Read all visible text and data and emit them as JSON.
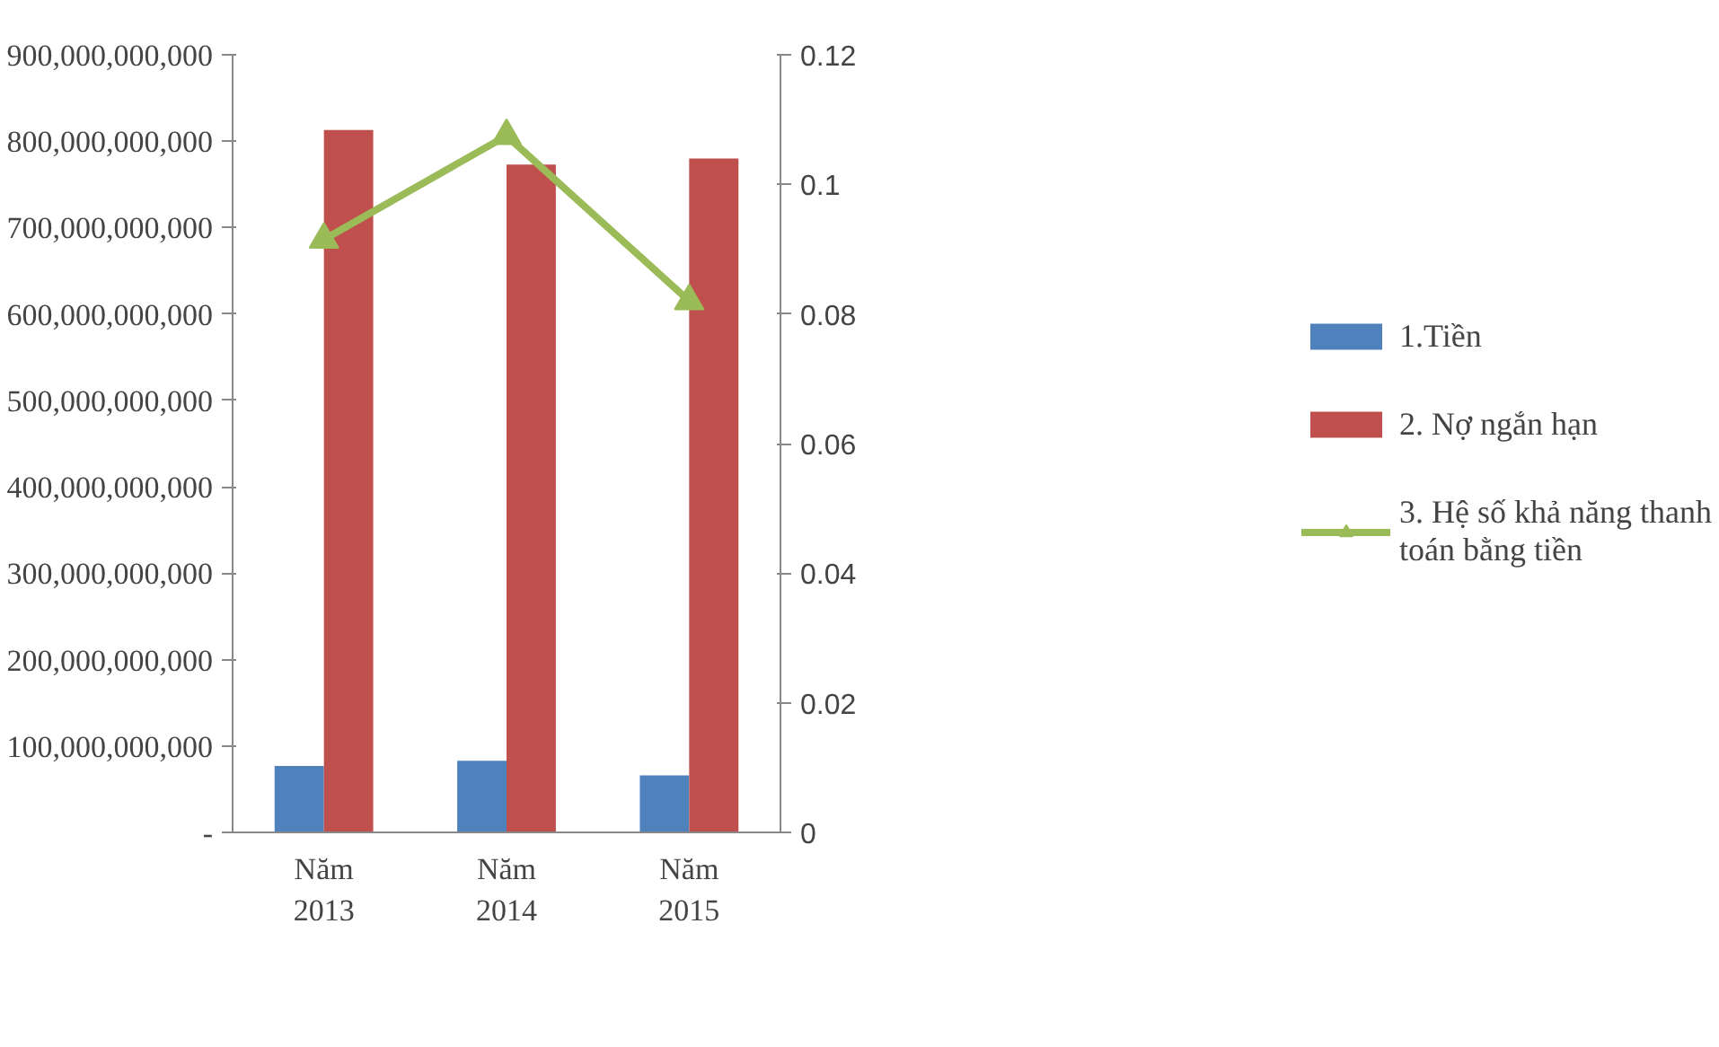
{
  "chart_data": {
    "type": "bar",
    "categories": [
      "Năm 2013",
      "Năm 2014",
      "Năm 2015"
    ],
    "series": [
      {
        "name": "1.Tiền",
        "color": "#4f81bd",
        "values": [
          77000000000,
          83000000000,
          66000000000
        ]
      },
      {
        "name": "2. Nợ ngắn hạn",
        "color": "#c0504d",
        "values": [
          813000000000,
          773000000000,
          780000000000
        ]
      },
      {
        "name": "3. Hệ số khả năng thanh toán bằng tiền",
        "type": "line",
        "axis": "y2",
        "color": "#9bbb59",
        "marker": "triangle",
        "values": [
          0.0915,
          0.1075,
          0.082
        ]
      }
    ],
    "ylim": [
      0,
      900000000000
    ],
    "yticks": [
      {
        "value": 0,
        "label": "-"
      },
      {
        "value": 100000000000,
        "label": "100,000,000,000"
      },
      {
        "value": 200000000000,
        "label": "200,000,000,000"
      },
      {
        "value": 300000000000,
        "label": "300,000,000,000"
      },
      {
        "value": 400000000000,
        "label": "400,000,000,000"
      },
      {
        "value": 500000000000,
        "label": "500,000,000,000"
      },
      {
        "value": 600000000000,
        "label": "600,000,000,000"
      },
      {
        "value": 700000000000,
        "label": "700,000,000,000"
      },
      {
        "value": 800000000000,
        "label": "800,000,000,000"
      },
      {
        "value": 900000000000,
        "label": "900,000,000,000"
      }
    ],
    "y2lim": [
      0,
      0.12
    ],
    "y2ticks": [
      0,
      0.02,
      0.04,
      0.06,
      0.08,
      0.1,
      0.12
    ],
    "grid": false,
    "legend": "right"
  }
}
